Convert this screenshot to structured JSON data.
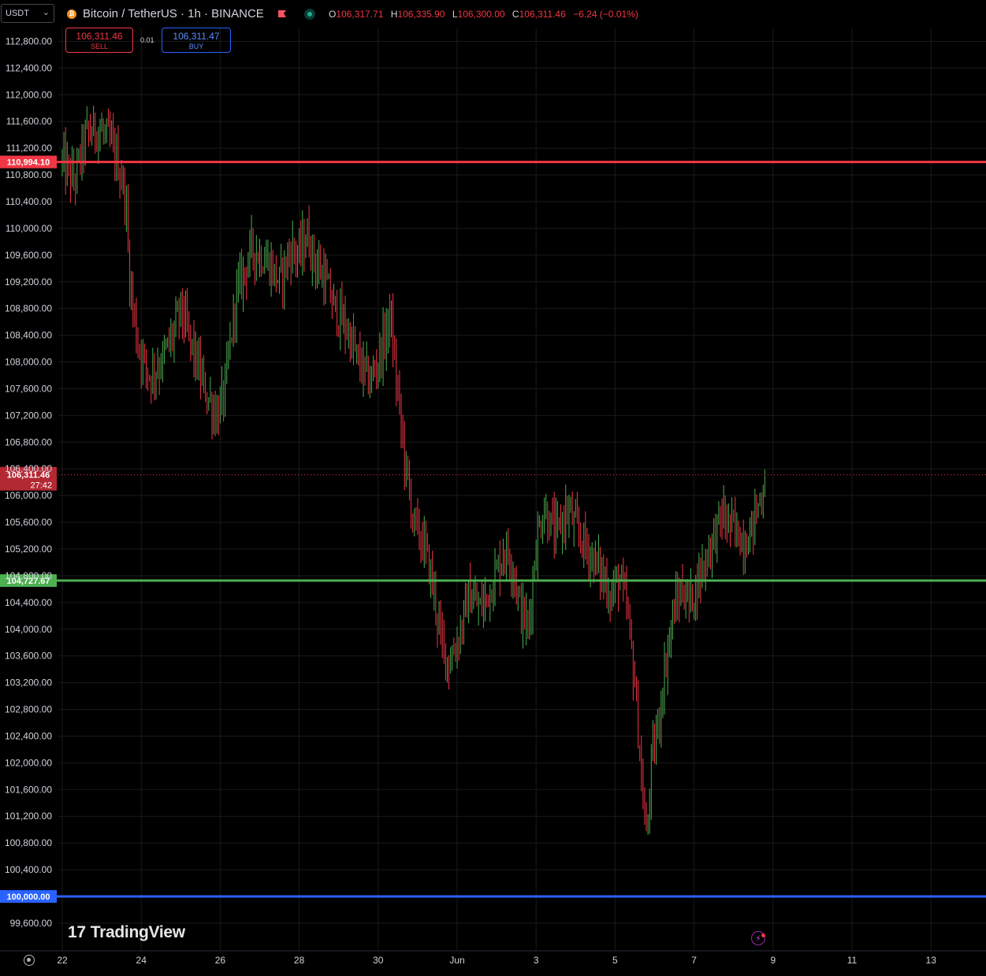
{
  "header": {
    "symbol_select": "USDT",
    "title": "Bitcoin / TetherUS · 1h · BINANCE",
    "coin_glyph": "₿",
    "ohlc": [
      {
        "key": "O",
        "value": "106,317.71"
      },
      {
        "key": "H",
        "value": "106,335.90"
      },
      {
        "key": "L",
        "value": "106,300.00"
      },
      {
        "key": "C",
        "value": "106,311.46"
      }
    ],
    "change": "−6.24 (−0.01%)"
  },
  "trade": {
    "sell_price": "106,311.46",
    "sell_label": "SELL",
    "spread": "0.01",
    "buy_price": "106,311.47",
    "buy_label": "BUY"
  },
  "watermark": "TradingView",
  "watermark_mark": "17",
  "colors": {
    "background": "#000000",
    "grid": "#1a1a1a",
    "up": "#4caf50",
    "down": "#f23645",
    "resistance": "#f23645",
    "support": "#4caf50",
    "psych": "#2962ff"
  },
  "chart_data": {
    "type": "candlestick",
    "title": "Bitcoin / TetherUS · 1h · BINANCE",
    "ylim": [
      99300,
      113100
    ],
    "y_ticks": [
      112800,
      112400,
      112000,
      111600,
      111200,
      110800,
      110400,
      110000,
      109600,
      109200,
      108800,
      108400,
      108000,
      107600,
      107200,
      106800,
      106400,
      106000,
      105600,
      105200,
      104800,
      104400,
      104000,
      103600,
      103200,
      102800,
      102400,
      102000,
      101600,
      101200,
      100800,
      100400,
      99600
    ],
    "x_ticks": [
      {
        "label": "22",
        "day": 0
      },
      {
        "label": "24",
        "day": 2
      },
      {
        "label": "26",
        "day": 4
      },
      {
        "label": "28",
        "day": 6
      },
      {
        "label": "30",
        "day": 8
      },
      {
        "label": "Jun",
        "day": 10
      },
      {
        "label": "3",
        "day": 12
      },
      {
        "label": "5",
        "day": 14
      },
      {
        "label": "7",
        "day": 16
      },
      {
        "label": "9",
        "day": 18
      },
      {
        "label": "11",
        "day": 20
      },
      {
        "label": "13",
        "day": 22
      }
    ],
    "horizontal_lines": [
      {
        "price": 110994.1,
        "label": "110,994.10",
        "color": "#f23645"
      },
      {
        "price": 104727.67,
        "label": "104,727.67",
        "color": "#4caf50"
      },
      {
        "price": 100000.0,
        "label": "100,000.00",
        "color": "#2962ff"
      }
    ],
    "last_price": {
      "price": 106311.46,
      "label": "106,311.46",
      "countdown": "27:42"
    },
    "series_path": [
      [
        0,
        111000
      ],
      [
        0.3,
        110700
      ],
      [
        0.6,
        111400
      ],
      [
        0.9,
        111500
      ],
      [
        1.2,
        111300
      ],
      [
        1.4,
        111000
      ],
      [
        1.6,
        110500
      ],
      [
        1.7,
        109300
      ],
      [
        1.9,
        108300
      ],
      [
        2.2,
        107800
      ],
      [
        2.5,
        108000
      ],
      [
        2.8,
        108400
      ],
      [
        3.0,
        108800
      ],
      [
        3.3,
        108200
      ],
      [
        3.6,
        107600
      ],
      [
        3.9,
        107200
      ],
      [
        4.1,
        107500
      ],
      [
        4.4,
        109000
      ],
      [
        4.8,
        109700
      ],
      [
        5.2,
        109500
      ],
      [
        5.5,
        109200
      ],
      [
        5.8,
        109700
      ],
      [
        6.0,
        109600
      ],
      [
        6.2,
        109900
      ],
      [
        6.4,
        109500
      ],
      [
        6.6,
        109300
      ],
      [
        6.9,
        108800
      ],
      [
        7.2,
        108500
      ],
      [
        7.5,
        108000
      ],
      [
        7.8,
        107700
      ],
      [
        8.1,
        108200
      ],
      [
        8.3,
        108700
      ],
      [
        8.5,
        107500
      ],
      [
        8.7,
        106400
      ],
      [
        8.9,
        105600
      ],
      [
        9.2,
        105200
      ],
      [
        9.4,
        104600
      ],
      [
        9.6,
        103800
      ],
      [
        9.8,
        103500
      ],
      [
        10.0,
        103800
      ],
      [
        10.3,
        104500
      ],
      [
        10.6,
        104300
      ],
      [
        10.9,
        104700
      ],
      [
        11.2,
        105200
      ],
      [
        11.4,
        105000
      ],
      [
        11.6,
        104300
      ],
      [
        11.8,
        104000
      ],
      [
        12.0,
        105300
      ],
      [
        12.2,
        105800
      ],
      [
        12.5,
        105400
      ],
      [
        12.8,
        105800
      ],
      [
        13.0,
        105500
      ],
      [
        13.3,
        105200
      ],
      [
        13.6,
        104900
      ],
      [
        13.9,
        104500
      ],
      [
        14.1,
        104800
      ],
      [
        14.3,
        104300
      ],
      [
        14.5,
        103200
      ],
      [
        14.7,
        101500
      ],
      [
        14.8,
        100800
      ],
      [
        14.9,
        101900
      ],
      [
        15.1,
        102600
      ],
      [
        15.3,
        103600
      ],
      [
        15.5,
        104300
      ],
      [
        15.7,
        104600
      ],
      [
        15.9,
        104400
      ],
      [
        16.2,
        104900
      ],
      [
        16.5,
        105400
      ],
      [
        16.7,
        105700
      ],
      [
        17.0,
        105500
      ],
      [
        17.3,
        105300
      ],
      [
        17.5,
        105600
      ],
      [
        17.7,
        106000
      ],
      [
        17.8,
        106300
      ]
    ]
  }
}
